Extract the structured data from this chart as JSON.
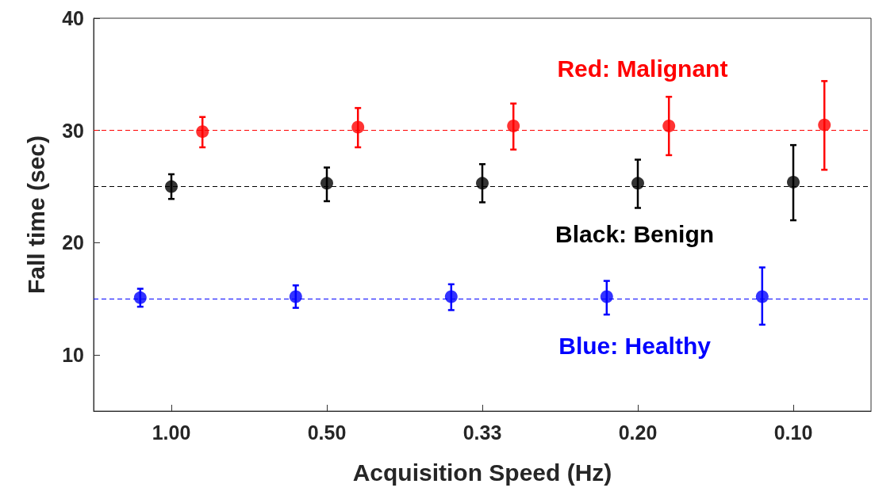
{
  "chart_data": {
    "type": "scatter",
    "xlabel": "Acquisition Speed (Hz)",
    "ylabel": "Fall time (sec)",
    "categories": [
      "1.00",
      "0.50",
      "0.33",
      "0.20",
      "0.10"
    ],
    "ylim": [
      5,
      40
    ],
    "yticks": [
      10,
      20,
      30,
      40
    ],
    "grid": false,
    "marker": "circle",
    "series": [
      {
        "name": "Red: Malignant",
        "color": "#ff0000",
        "x": [
          "1.00",
          "0.50",
          "0.33",
          "0.20",
          "0.10"
        ],
        "values": [
          29.9,
          30.3,
          30.4,
          30.4,
          30.5
        ],
        "errors": [
          [
            28.5,
            31.2
          ],
          [
            28.5,
            32
          ],
          [
            28.3,
            32.4
          ],
          [
            27.8,
            33
          ],
          [
            26.5,
            34.4
          ]
        ]
      },
      {
        "name": "Black: Benign",
        "color": "#000000",
        "x": [
          "1.00",
          "0.50",
          "0.33",
          "0.20",
          "0.10"
        ],
        "values": [
          25,
          25.3,
          25.3,
          25.3,
          25.4
        ],
        "errors": [
          [
            23.9,
            26.1
          ],
          [
            23.7,
            26.7
          ],
          [
            23.6,
            27
          ],
          [
            23.1,
            27.4
          ],
          [
            22,
            28.7
          ]
        ]
      },
      {
        "name": "Blue: Healthy",
        "color": "#0000ff",
        "x": [
          "1.00",
          "0.50",
          "0.33",
          "0.20",
          "0.10"
        ],
        "values": [
          15.1,
          15.2,
          15.2,
          15.2,
          15.2
        ],
        "errors": [
          [
            14.3,
            15.9
          ],
          [
            14.2,
            16.2
          ],
          [
            14,
            16.3
          ],
          [
            13.6,
            16.6
          ],
          [
            12.7,
            17.8
          ]
        ]
      }
    ],
    "ref_lines": [
      {
        "axis": "y",
        "value": 30,
        "color": "#ff0000",
        "line_style": "dashed"
      },
      {
        "axis": "y",
        "value": 25,
        "color": "#000000",
        "line_style": "dashed"
      },
      {
        "axis": "y",
        "value": 15,
        "color": "#0000ff",
        "line_style": "dashed"
      }
    ]
  }
}
